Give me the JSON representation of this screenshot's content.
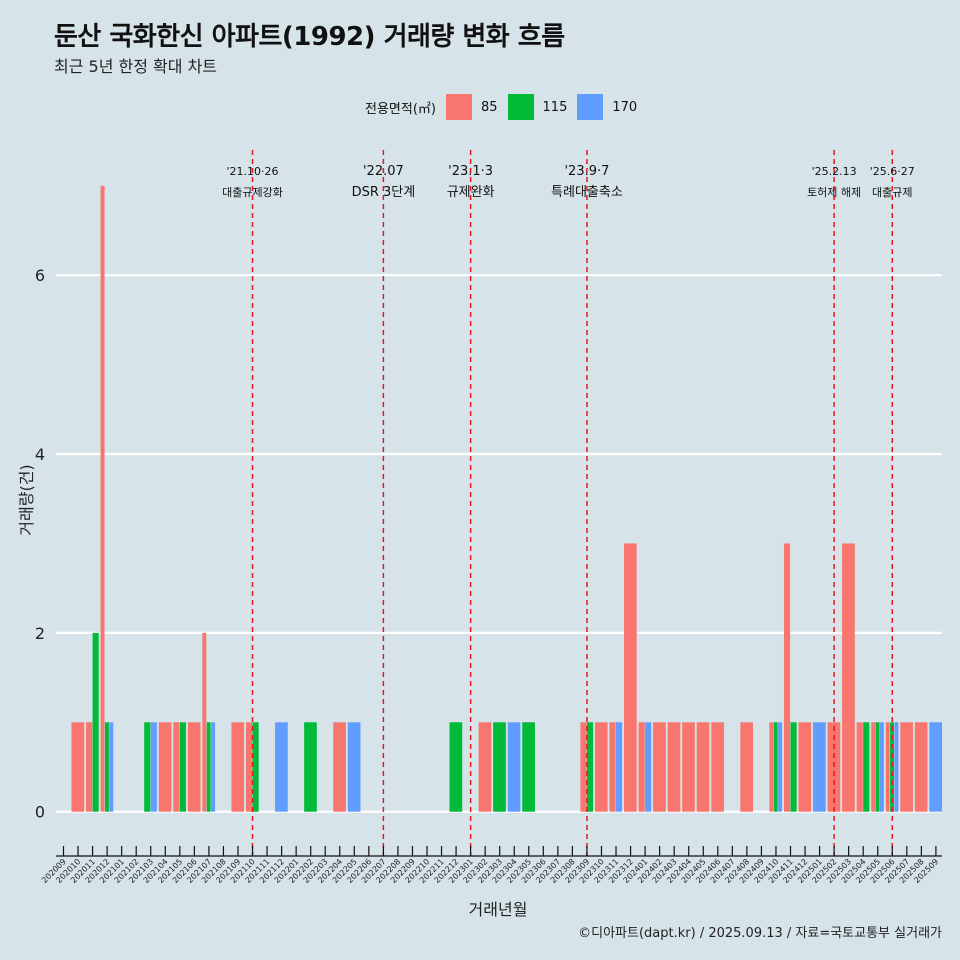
{
  "title": "둔산 국화한신 아파트(1992) 거래량 변화 흐름",
  "subtitle": "최근 5년 한정 확대 차트",
  "caption": "©디아파트(dapt.kr) / 2025.09.13 / 자료=국토교통부 실거래가",
  "legend": {
    "title": "전용면적(㎡)",
    "items": [
      {
        "label": "85",
        "color": "#f8766d"
      },
      {
        "label": "115",
        "color": "#00ba38"
      },
      {
        "label": "170",
        "color": "#619cff"
      }
    ]
  },
  "chart_data": {
    "type": "bar",
    "xlabel": "거래년월",
    "ylabel": "거래량(건)",
    "ylim": [
      -0.35,
      7.4
    ],
    "yticks": [
      0,
      2,
      4,
      6
    ],
    "grid": true,
    "legend_position": "top",
    "categories": [
      "202009",
      "202010",
      "202011",
      "202012",
      "202101",
      "202102",
      "202103",
      "202104",
      "202105",
      "202106",
      "202107",
      "202108",
      "202109",
      "202110",
      "202111",
      "202112",
      "202201",
      "202202",
      "202203",
      "202204",
      "202205",
      "202206",
      "202207",
      "202208",
      "202209",
      "202210",
      "202211",
      "202212",
      "202301",
      "202302",
      "202303",
      "202304",
      "202305",
      "202306",
      "202307",
      "202308",
      "202309",
      "202310",
      "202311",
      "202312",
      "202401",
      "202402",
      "202403",
      "202404",
      "202405",
      "202406",
      "202407",
      "202408",
      "202409",
      "202410",
      "202411",
      "202412",
      "202501",
      "202502",
      "202503",
      "202504",
      "202505",
      "202506",
      "202507",
      "202508",
      "202509"
    ],
    "series": [
      {
        "name": "85",
        "color": "#f8766d",
        "values": [
          0,
          1,
          1,
          7,
          0,
          0,
          0,
          1,
          1,
          1,
          2,
          0,
          1,
          1,
          0,
          0,
          0,
          0,
          0,
          1,
          0,
          0,
          0,
          0,
          0,
          0,
          0,
          0,
          0,
          1,
          0,
          0,
          0,
          0,
          0,
          0,
          1,
          1,
          1,
          3,
          1,
          1,
          1,
          1,
          1,
          1,
          0,
          1,
          0,
          1,
          3,
          1,
          0,
          1,
          3,
          1,
          1,
          1,
          1,
          1,
          0
        ]
      },
      {
        "name": "115",
        "color": "#00ba38",
        "values": [
          0,
          0,
          2,
          1,
          0,
          0,
          1,
          0,
          1,
          0,
          1,
          0,
          0,
          1,
          0,
          0,
          0,
          1,
          0,
          0,
          0,
          0,
          0,
          0,
          0,
          0,
          0,
          1,
          0,
          0,
          1,
          0,
          1,
          0,
          0,
          0,
          1,
          0,
          0,
          0,
          0,
          0,
          0,
          0,
          0,
          0,
          0,
          0,
          0,
          1,
          1,
          0,
          0,
          0,
          0,
          1,
          1,
          1,
          0,
          0,
          0
        ]
      },
      {
        "name": "170",
        "color": "#619cff",
        "values": [
          0,
          0,
          0,
          1,
          0,
          0,
          1,
          0,
          0,
          0,
          1,
          0,
          0,
          0,
          0,
          1,
          0,
          0,
          0,
          0,
          1,
          0,
          0,
          0,
          0,
          0,
          0,
          0,
          0,
          0,
          0,
          1,
          0,
          0,
          0,
          0,
          0,
          0,
          1,
          0,
          1,
          0,
          0,
          0,
          0,
          0,
          0,
          0,
          0,
          1,
          0,
          0,
          1,
          0,
          0,
          0,
          1,
          1,
          0,
          0,
          1
        ]
      }
    ],
    "events": [
      {
        "date_label": "'21.10·26",
        "text": "대출규제강화",
        "x": "202110"
      },
      {
        "date_label": "'22.07",
        "text": "DSR 3단계",
        "x": "202207"
      },
      {
        "date_label": "'23.1·3",
        "text": "규제완화",
        "x": "202301"
      },
      {
        "date_label": "'23.9·7",
        "text": "특례대출축소",
        "x": "202309"
      },
      {
        "date_label": "'25.2.13",
        "text": "토허제 해제",
        "x": "202502"
      },
      {
        "date_label": "'25.6·27",
        "text": "대출규제",
        "x": "202506"
      }
    ]
  }
}
